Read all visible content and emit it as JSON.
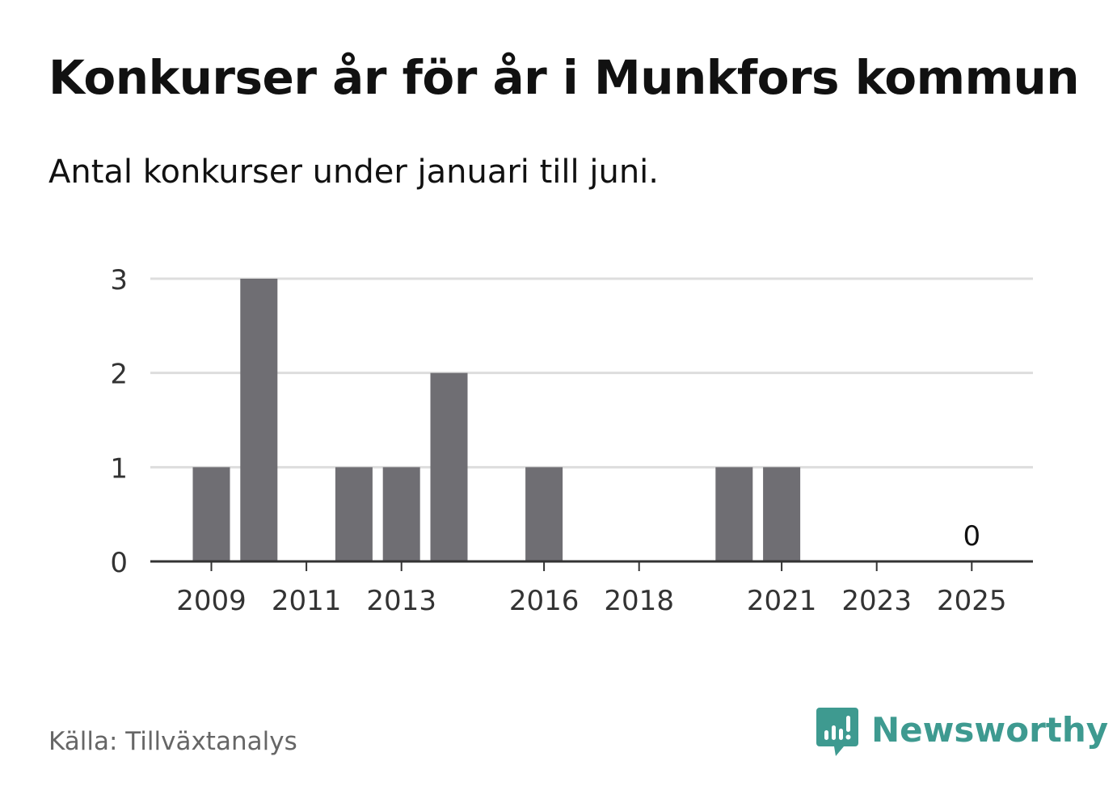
{
  "header": {
    "title": "Konkurser år för år i Munkfors kommun",
    "subtitle": "Antal konkurser under januari till juni."
  },
  "footer": {
    "source": "Källa: Tillväxtanalys",
    "brand": "Newsworthy",
    "brand_icon": "newsworthy-logo-icon",
    "brand_color": "#3e9a90"
  },
  "chart_data": {
    "type": "bar",
    "title": "Konkurser år för år i Munkfors kommun",
    "subtitle": "Antal konkurser under januari till juni.",
    "categories": [
      "2009",
      "2010",
      "2011",
      "2012",
      "2013",
      "2014",
      "2015",
      "2016",
      "2017",
      "2018",
      "2019",
      "2020",
      "2021",
      "2022",
      "2023",
      "2024",
      "2025"
    ],
    "values": [
      1,
      3,
      0,
      1,
      1,
      2,
      0,
      1,
      0,
      0,
      0,
      1,
      1,
      0,
      0,
      0,
      0
    ],
    "x_tick_labels": [
      "2009",
      "2011",
      "2013",
      "2016",
      "2018",
      "2021",
      "2023",
      "2025"
    ],
    "y_ticks": [
      0,
      1,
      2,
      3
    ],
    "ylim": [
      0,
      3
    ],
    "xlabel": "",
    "ylabel": "",
    "grid": true,
    "legend": "none",
    "bar_color": "#6f6e73",
    "grid_color": "#dddddd",
    "axis_color": "#333333",
    "annotations": [
      {
        "category": "2025",
        "text": "0"
      }
    ]
  }
}
